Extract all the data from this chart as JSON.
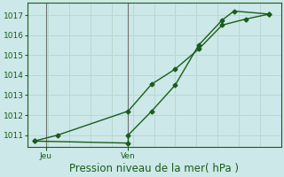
{
  "title": "Pression niveau de la mer( hPa )",
  "background_color": "#cce8e8",
  "grid_color": "#b8d8d0",
  "line_color": "#1a5c1a",
  "spine_color": "#1a5c1a",
  "ylim": [
    1010.4,
    1017.6
  ],
  "yticks": [
    1011,
    1012,
    1013,
    1014,
    1015,
    1016,
    1017
  ],
  "vline_color": "#707070",
  "tick_fontsize": 6.5,
  "xlabel_fontsize": 8.5,
  "line_width": 1.0,
  "marker": "D",
  "marker_size": 2.5,
  "line1_x": [
    0,
    1,
    4,
    5,
    6,
    7,
    8,
    9,
    10
  ],
  "line1_y": [
    1010.7,
    1011.0,
    1012.2,
    1013.55,
    1014.3,
    1015.3,
    1016.5,
    1016.8,
    1017.05
  ],
  "line2_x": [
    0,
    4,
    4,
    5,
    6,
    7,
    8,
    8.5,
    10
  ],
  "line2_y": [
    1010.7,
    1010.6,
    1011.0,
    1012.2,
    1013.5,
    1015.5,
    1016.75,
    1017.2,
    1017.05
  ],
  "jeu_x": 0.5,
  "ven_x": 4.0,
  "xlim": [
    -0.3,
    10.5
  ],
  "n_xgrid": 12
}
